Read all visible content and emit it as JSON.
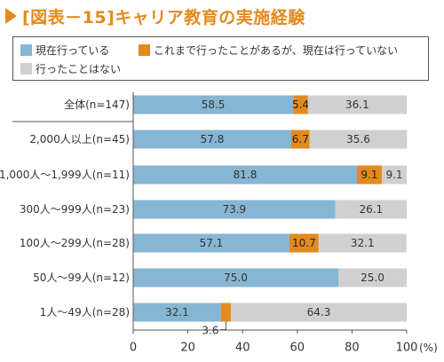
{
  "title": "[図表－15]キャリア教育の実施経験",
  "colors": {
    "accent": "#e38a1f",
    "series1": "#86b6d3",
    "series2": "#e38a1f",
    "series3": "#d0d0d0"
  },
  "chart_data": {
    "type": "bar",
    "orientation": "horizontal",
    "stacked": true,
    "title": "[図表－15]キャリア教育の実施経験",
    "categories": [
      "全体(n=147)",
      "2,000人以上(n=45)",
      "1,000人～1,999人(n=11)",
      "300人～999人(n=23)",
      "100人～299人(n=28)",
      "50人～99人(n=12)",
      "1人～49人(n=28)"
    ],
    "series": [
      {
        "name": "現在行っている",
        "values": [
          58.5,
          57.8,
          81.8,
          73.9,
          57.1,
          75.0,
          32.1
        ],
        "labels": [
          "58.5",
          "57.8",
          "81.8",
          "73.9",
          "57.1",
          "75.0",
          "32.1"
        ]
      },
      {
        "name": "これまで行ったことがあるが、現在は行っていない",
        "values": [
          5.4,
          6.7,
          9.1,
          0,
          10.7,
          0,
          3.6
        ],
        "labels": [
          "5.4",
          "6.7",
          "9.1",
          "",
          "10.7",
          "",
          "3.6"
        ]
      },
      {
        "name": "行ったことはない",
        "values": [
          36.1,
          35.6,
          9.1,
          26.1,
          32.1,
          25.0,
          64.3
        ],
        "labels": [
          "36.1",
          "35.6",
          "9.1",
          "26.1",
          "32.1",
          "25.0",
          "64.3"
        ]
      }
    ],
    "xlim": [
      0,
      100
    ],
    "xticks": [
      "0",
      "20",
      "40",
      "60",
      "80",
      "100"
    ],
    "x_unit": "(%)",
    "legend": "top",
    "grid": false
  }
}
